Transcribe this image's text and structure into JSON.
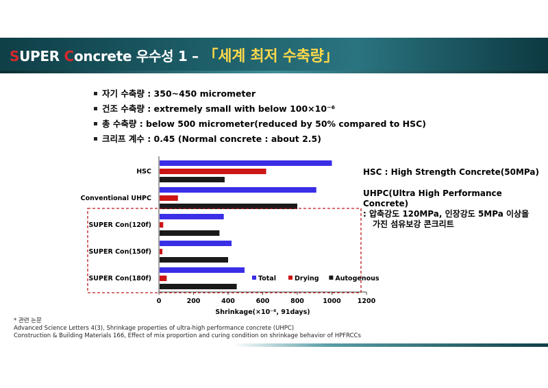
{
  "header": {
    "title_s": "S",
    "title_uper": "UPER ",
    "title_c": "C",
    "title_oncrete": "oncrete",
    "title_suffix": " 우수성 1 – ",
    "title_highlight": "「세계 최저 수축량」"
  },
  "bullets": [
    "자기 수축량 : 350~450 micrometer",
    "건조 수축량 : extremely small with below 100×10⁻⁶",
    "총 수축량 : below 500 micrometer(reduced by 50% compared to HSC)",
    "크리프 계수 : 0.45 (Normal concrete : about 2.5)"
  ],
  "colors": {
    "total": "#3a2ee6",
    "drying": "#cc1515",
    "autogenous": "#1a1a1a",
    "highlight_box": "#c0161b"
  },
  "chart_data": {
    "type": "bar",
    "orientation": "horizontal",
    "categories": [
      "HSC",
      "Conventional UHPC",
      "SUPER Con(120f)",
      "SUPER Con(150f)",
      "SUPER Con(180f)"
    ],
    "series": [
      {
        "name": "Total",
        "values": [
          1000,
          910,
          375,
          420,
          495
        ]
      },
      {
        "name": "Drying",
        "values": [
          620,
          110,
          25,
          20,
          45
        ]
      },
      {
        "name": "Autogenous",
        "values": [
          380,
          800,
          350,
          400,
          450
        ]
      }
    ],
    "xlabel": "Shrinkage(×10⁻⁶, 91days)",
    "xlim": [
      0,
      1200
    ],
    "xticks": [
      "0",
      "200",
      "400",
      "600",
      "800",
      "1000",
      "1200"
    ],
    "legend": [
      "Total",
      "Drying",
      "Autogenous"
    ],
    "legend_position": "bottom-right",
    "highlighted_categories": [
      "SUPER Con(120f)",
      "SUPER Con(150f)",
      "SUPER Con(180f)"
    ]
  },
  "notes": {
    "hsc": "HSC : High Strength Concrete(50MPa)",
    "uhpc_line1": "UHPC(Ultra High Performance Concrete)",
    "uhpc_line2": ":  압축강도 120MPa, 인장강도 5MPa 이상을",
    "uhpc_line3": "가진 섬유보강 콘크리트"
  },
  "references": {
    "heading": "* 관련 논문",
    "items": [
      "Advanced Science Letters 4(3), Shrinkage properties of ultra-high performance concrete (UHPC)",
      "Construction & Building Materials 166, Effect of mix proportion and curing condition on shrinkage behavior of HPFRCCs"
    ]
  }
}
